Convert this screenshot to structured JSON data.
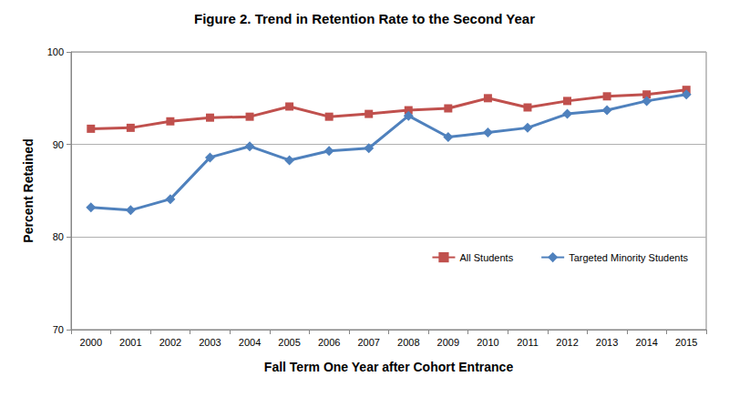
{
  "chart_data": {
    "type": "line",
    "title": "Figure 2. Trend in Retention Rate to the Second Year",
    "x_label": "Fall Term One Year after Cohort Entrance",
    "y_label": "Percent Retained",
    "categories": [
      "2000",
      "2001",
      "2002",
      "2003",
      "2004",
      "2005",
      "2006",
      "2007",
      "2008",
      "2009",
      "2010",
      "2011",
      "2012",
      "2013",
      "2014",
      "2015"
    ],
    "series": [
      {
        "name": "All Students",
        "color": "#c0504d",
        "marker": "square",
        "values": [
          91.7,
          91.8,
          92.5,
          92.9,
          93.0,
          94.1,
          93.0,
          93.3,
          93.7,
          93.9,
          95.0,
          94.0,
          94.7,
          95.2,
          95.4,
          95.9
        ]
      },
      {
        "name": "Targeted Minority Students",
        "color": "#4f81bd",
        "marker": "diamond",
        "values": [
          83.2,
          82.9,
          84.1,
          88.6,
          89.8,
          88.3,
          89.3,
          89.6,
          93.1,
          90.8,
          91.3,
          91.8,
          93.3,
          93.7,
          94.7,
          95.4
        ]
      }
    ],
    "ylim": [
      70,
      100
    ],
    "yticks": [
      70,
      80,
      90,
      100
    ],
    "grid": true,
    "legend": "lower right"
  }
}
